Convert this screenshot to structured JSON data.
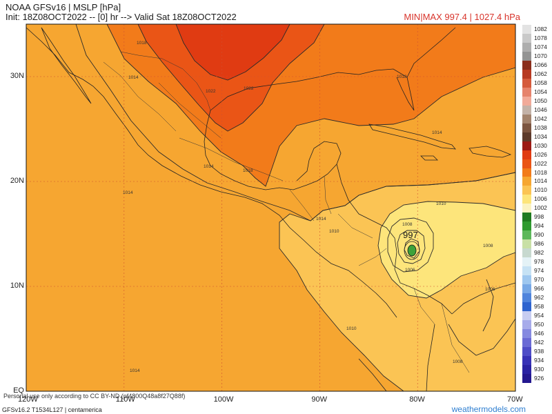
{
  "header": {
    "title": "NOAA GFSv16 | MSLP [hPa]",
    "init": "Init: 18Z08OCT2022 -- [0] hr --> Valid Sat 18Z08OCT2022",
    "minmax": "MIN|MAX 997.4 | 1027.4 hPa"
  },
  "map": {
    "lat_labels": [
      {
        "text": "30N",
        "lat": 30
      },
      {
        "text": "20N",
        "lat": 20
      },
      {
        "text": "10N",
        "lat": 10
      },
      {
        "text": "EQ",
        "lat": 0
      }
    ],
    "lon_labels": [
      {
        "text": "120W",
        "lon": -120
      },
      {
        "text": "110W",
        "lon": -110
      },
      {
        "text": "100W",
        "lon": -100
      },
      {
        "text": "90W",
        "lon": -90
      },
      {
        "text": "80W",
        "lon": -80
      },
      {
        "text": "70W",
        "lon": -70
      }
    ],
    "isobar_labels": [
      "1018",
      "1014",
      "1022",
      "1022",
      "1018",
      "1014",
      "1014",
      "1018",
      "1014",
      "1014",
      "1010",
      "1010",
      "1008",
      "1006",
      "1008",
      "1006",
      "1010",
      "1008",
      "1014"
    ],
    "low_center": {
      "value": "997",
      "lat": 13.5,
      "lon": -80.5
    },
    "colors": {
      "ocean": "#f6a631",
      "band_1014": "#f6a631",
      "band_1010": "#fbc454",
      "band_1006": "#fde57b",
      "band_1018": "#f27b1a",
      "band_1022": "#ea5516",
      "band_1026": "#e03b12",
      "low_inner": "#3da23a"
    }
  },
  "legend": {
    "items": [
      {
        "label": "1082",
        "color": "#e3e3e3"
      },
      {
        "label": "1078",
        "color": "#c9c9c9"
      },
      {
        "label": "1074",
        "color": "#aeaeae"
      },
      {
        "label": "1070",
        "color": "#949494"
      },
      {
        "label": "1066",
        "color": "#8a2e1c"
      },
      {
        "label": "1062",
        "color": "#b73a22"
      },
      {
        "label": "1058",
        "color": "#d55a3c"
      },
      {
        "label": "1054",
        "color": "#e6836c"
      },
      {
        "label": "1050",
        "color": "#f1aa99"
      },
      {
        "label": "1046",
        "color": "#c3b2a8"
      },
      {
        "label": "1042",
        "color": "#a3836d"
      },
      {
        "label": "1038",
        "color": "#7c5540"
      },
      {
        "label": "1034",
        "color": "#5d3a2b"
      },
      {
        "label": "1030",
        "color": "#9c1a14"
      },
      {
        "label": "1026",
        "color": "#e03b12"
      },
      {
        "label": "1022",
        "color": "#ea5516"
      },
      {
        "label": "1018",
        "color": "#f27b1a"
      },
      {
        "label": "1014",
        "color": "#f6a631"
      },
      {
        "label": "1010",
        "color": "#fbc454"
      },
      {
        "label": "1006",
        "color": "#fde57b"
      },
      {
        "label": "1002",
        "color": "#fbf3c2"
      },
      {
        "label": "998",
        "color": "#1f7a1f"
      },
      {
        "label": "994",
        "color": "#2e9a2e"
      },
      {
        "label": "990",
        "color": "#5db85b"
      },
      {
        "label": "986",
        "color": "#c8e0a6"
      },
      {
        "label": "982",
        "color": "#c7d9cf"
      },
      {
        "label": "978",
        "color": "#e4f2f6"
      },
      {
        "label": "974",
        "color": "#c6e2f4"
      },
      {
        "label": "970",
        "color": "#9ec7ef"
      },
      {
        "label": "966",
        "color": "#77a8e6"
      },
      {
        "label": "962",
        "color": "#4f84dc"
      },
      {
        "label": "958",
        "color": "#2e64cf"
      },
      {
        "label": "954",
        "color": "#c7cdf1"
      },
      {
        "label": "950",
        "color": "#a7abea"
      },
      {
        "label": "946",
        "color": "#8589e0"
      },
      {
        "label": "942",
        "color": "#6a6ad5"
      },
      {
        "label": "938",
        "color": "#4e4cc7"
      },
      {
        "label": "934",
        "color": "#3731b6"
      },
      {
        "label": "930",
        "color": "#2a22a3"
      },
      {
        "label": "926",
        "color": "#24188f"
      }
    ]
  },
  "footer": {
    "note": "Personal use only according to CC BY-ND (pf4800Q48a8f27Q88f)",
    "model": "GFSv16.2 T1534L127 | centamerica",
    "site": "weathermodels.com"
  }
}
